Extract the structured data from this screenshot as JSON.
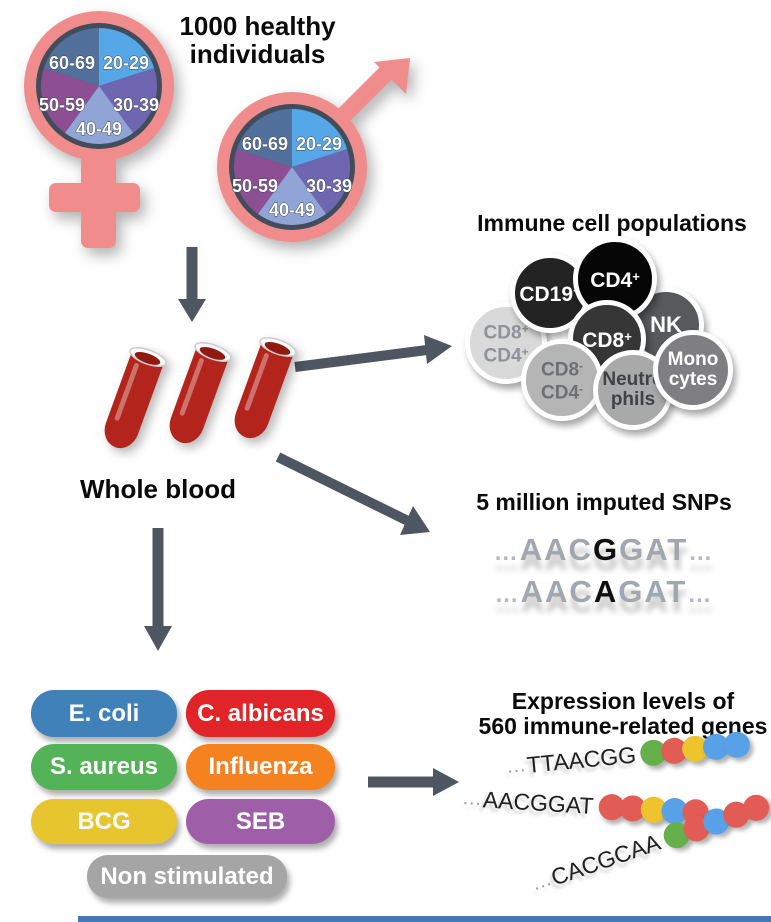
{
  "header": {
    "title_line1": "1000 healthy",
    "title_line2": "individuals"
  },
  "demographics": {
    "age_groups": [
      "20-29",
      "30-39",
      "40-49",
      "50-59",
      "60-69"
    ],
    "segment_colors": [
      "#55a7e8",
      "#6e66b0",
      "#90a5d6",
      "#8d4e94",
      "#52709c"
    ],
    "symbol_color": "#f08c8c",
    "ring_color": "#424d5c"
  },
  "blood": {
    "label": "Whole blood",
    "tube_count": 3,
    "tube_color": "#b3251c",
    "tube_mouth_color": "#8f1a12"
  },
  "arrows": {
    "color": "#4e5761"
  },
  "immune": {
    "title": "Immune cell populations",
    "cells": [
      {
        "id": "cd8-cd4-double-positive",
        "lines": [
          {
            "base": "CD8",
            "sup": "+"
          },
          {
            "base": "CD4",
            "sup": "+"
          }
        ],
        "bg": "#d9d9d9",
        "fg": "#8f9296"
      },
      {
        "id": "cd19",
        "lines": [
          {
            "base": "CD19",
            "sup": "+"
          }
        ],
        "bg": "#232323",
        "fg": "#ffffff"
      },
      {
        "id": "nk",
        "lines": [
          {
            "base": "NK",
            "sup": ""
          }
        ],
        "bg": "#58595b",
        "fg": "#ffffff"
      },
      {
        "id": "cd4",
        "lines": [
          {
            "base": "CD4",
            "sup": "+"
          }
        ],
        "bg": "#060606",
        "fg": "#ffffff"
      },
      {
        "id": "cd8",
        "lines": [
          {
            "base": "CD8",
            "sup": "+"
          }
        ],
        "bg": "#363636",
        "fg": "#ffffff"
      },
      {
        "id": "cd8-cd4-double-negative",
        "lines": [
          {
            "base": "CD8",
            "sup": "-"
          },
          {
            "base": "CD4",
            "sup": "-"
          }
        ],
        "bg": "#b5b5b5",
        "fg": "#6d7073"
      },
      {
        "id": "neutrophils",
        "lines": [
          {
            "base": "Neutro",
            "sup": ""
          },
          {
            "base": "phils",
            "sup": ""
          }
        ],
        "bg": "#a9a9a9",
        "fg": "#3f4245"
      },
      {
        "id": "monocytes",
        "lines": [
          {
            "base": "Mono",
            "sup": ""
          },
          {
            "base": "cytes",
            "sup": ""
          }
        ],
        "bg": "#7f7f81",
        "fg": "#ffffff"
      }
    ]
  },
  "snps": {
    "title": "5 million imputed SNPs",
    "sequences": [
      {
        "prefix": "…",
        "pre": "AAC",
        "snp": "G",
        "post": "GAT",
        "suffix": "…"
      },
      {
        "prefix": "…",
        "pre": "AAC",
        "snp": "A",
        "post": "GAT",
        "suffix": "…"
      }
    ]
  },
  "stimulations": [
    {
      "label": "E. coli",
      "color": "#3f81b8"
    },
    {
      "label": "C. albicans",
      "color": "#e02428"
    },
    {
      "label": "S. aureus",
      "color": "#53b356"
    },
    {
      "label": "Influenza",
      "color": "#f6821f"
    },
    {
      "label": "BCG",
      "color": "#e6c52f"
    },
    {
      "label": "SEB",
      "color": "#9f5fa8"
    },
    {
      "label": "Non stimulated",
      "color": "#a5a5a5"
    }
  ],
  "expression": {
    "title_line1": "Expression levels of",
    "title_line2": "560 immune-related genes",
    "palette": {
      "green": "#66b04b",
      "red": "#e25c55",
      "yellow": "#eec32d",
      "blue": "#58a0e8"
    },
    "rows": [
      {
        "prefix": "…",
        "seq": "TTAACGG",
        "dots": [
          "green",
          "red",
          "yellow",
          "blue",
          "blue"
        ]
      },
      {
        "prefix": "…",
        "seq": "AACGGAT",
        "dots": [
          "red",
          "red",
          "yellow",
          "blue",
          "red"
        ]
      },
      {
        "prefix": "…",
        "seq": "CACGCAA",
        "dots": [
          "green",
          "red",
          "blue",
          "red",
          "red"
        ]
      }
    ]
  },
  "footer": {
    "bar_color": "#4577b9"
  }
}
